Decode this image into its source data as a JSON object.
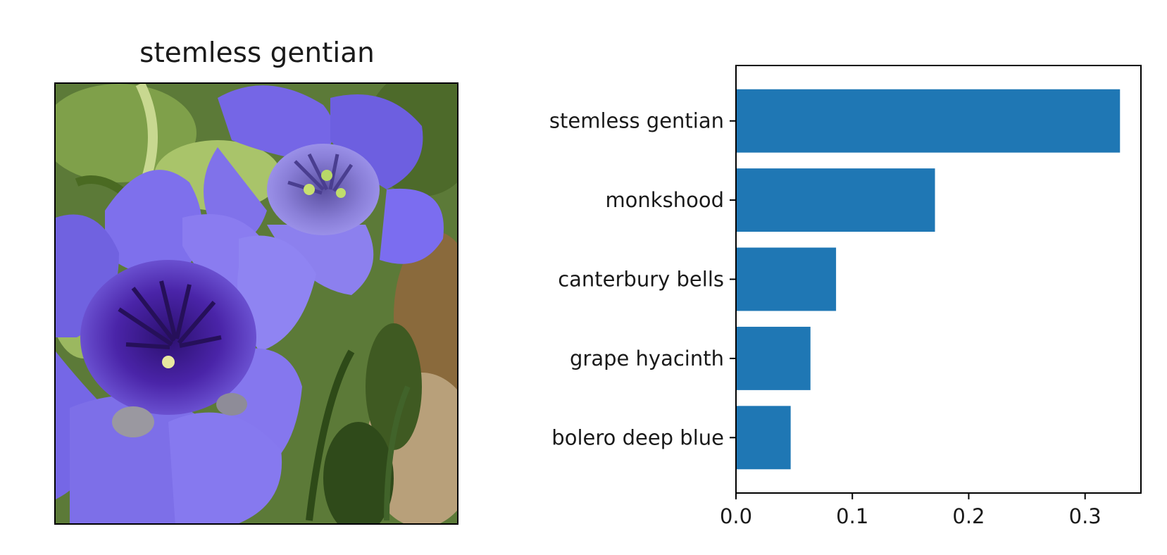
{
  "image_panel": {
    "title": "stemless gentian",
    "image_description": "photo of purple flowers"
  },
  "chart_data": {
    "type": "bar",
    "orientation": "horizontal",
    "categories": [
      "stemless gentian",
      "monkshood",
      "canterbury bells",
      "grape hyacinth",
      "bolero deep blue"
    ],
    "values": [
      0.33,
      0.171,
      0.086,
      0.064,
      0.047
    ],
    "xlim": [
      0,
      0.348
    ],
    "xticks": [
      "0.0",
      "0.1",
      "0.2",
      "0.3"
    ],
    "xtick_values": [
      0.0,
      0.1,
      0.2,
      0.3
    ],
    "title": "",
    "xlabel": "",
    "ylabel": "",
    "grid": false,
    "bar_color": "#1f77b4"
  }
}
